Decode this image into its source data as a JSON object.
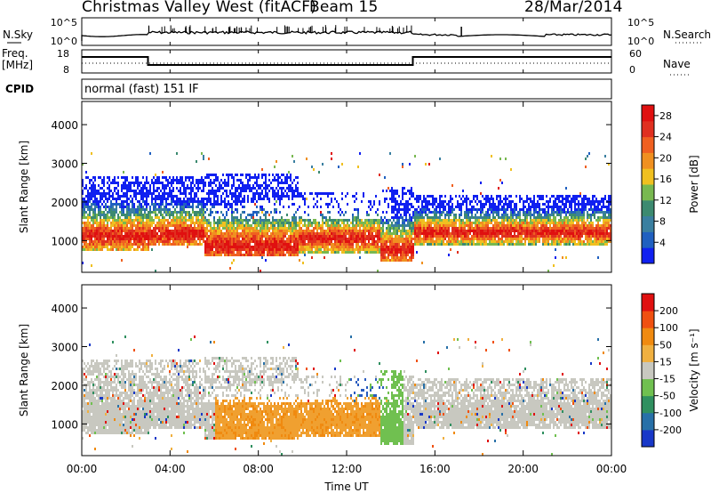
{
  "header": {
    "title": "Christmas Valley West (fitACF)",
    "beam": "Beam 15",
    "date": "28/Mar/2014"
  },
  "panels": {
    "nsky": {
      "left_label": "N.Sky",
      "right_label": "N.Search",
      "left_ticks": [
        "10^5",
        "10^0"
      ],
      "right_ticks": [
        "10^5",
        "10^0"
      ]
    },
    "freq": {
      "left_label_1": "Freq.",
      "left_label_2": "[MHz]",
      "right_label": "Nave",
      "left_ticks": [
        "18",
        "8"
      ],
      "right_ticks": [
        "60",
        "0"
      ]
    },
    "cpid": {
      "label": "CPID",
      "text": "normal (fast) 151 IF"
    }
  },
  "chart_data": [
    {
      "type": "heatmap",
      "title": "",
      "ylabel": "Slant Range [km]",
      "xlabel": "",
      "ylim": [
        180,
        4600
      ],
      "yticks": [
        "1000",
        "2000",
        "3000",
        "4000"
      ],
      "colorbar": {
        "label": "Power [dB]",
        "ticks": [
          "4",
          "8",
          "12",
          "16",
          "20",
          "24",
          "28"
        ],
        "range": [
          0,
          30
        ],
        "colors": [
          "#1020f0",
          "#2060c0",
          "#3a7fa0",
          "#3c8a70",
          "#78b850",
          "#f0c020",
          "#f09020",
          "#f06020",
          "#e03020",
          "#e01010"
        ]
      }
    },
    {
      "type": "heatmap",
      "title": "",
      "ylabel": "Slant Range [km]",
      "xlabel": "Time UT",
      "ylim": [
        180,
        4600
      ],
      "yticks": [
        "1000",
        "2000",
        "3000",
        "4000"
      ],
      "xticks": [
        "00:00",
        "04:00",
        "08:00",
        "12:00",
        "16:00",
        "20:00",
        "00:00"
      ],
      "colorbar": {
        "label": "Velocity [m s⁻¹]",
        "ticks": [
          "200",
          "100",
          "50",
          "15",
          "-15",
          "-50",
          "-100",
          "-200"
        ],
        "colors": [
          "#1838c8",
          "#2870a8",
          "#309060",
          "#70c050",
          "#c8c8c0",
          "#f0b040",
          "#f08a10",
          "#f05010",
          "#e01010"
        ]
      }
    }
  ]
}
